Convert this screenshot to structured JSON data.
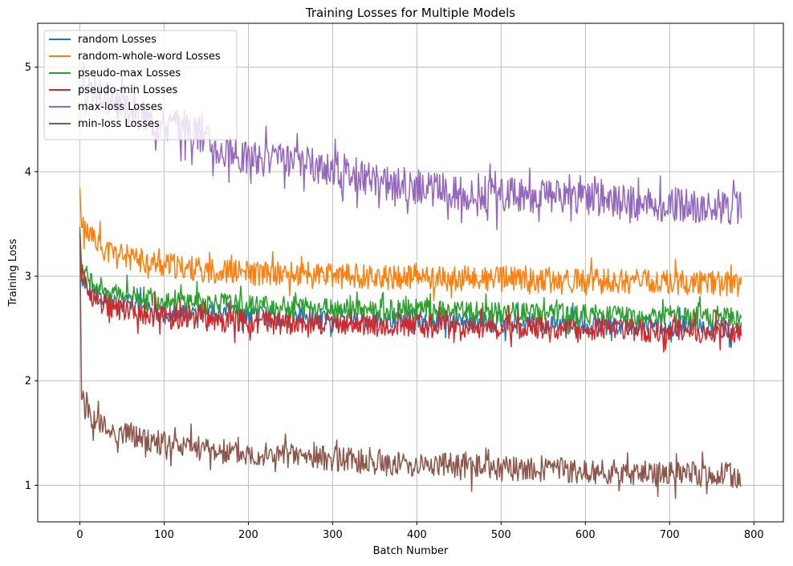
{
  "chart_data": {
    "type": "line",
    "title": "Training Losses for Multiple Models",
    "xlabel": "Batch Number",
    "ylabel": "Training Loss",
    "xlim": [
      -50,
      835
    ],
    "ylim": [
      0.65,
      5.42
    ],
    "x_ticks": [
      0,
      100,
      200,
      300,
      400,
      500,
      600,
      700,
      800
    ],
    "y_ticks": [
      1,
      2,
      3,
      4,
      5
    ],
    "grid": true,
    "legend_position": "upper left",
    "x_points": [
      0,
      2,
      4,
      6,
      8,
      10,
      15,
      20,
      25,
      30,
      40,
      50,
      60,
      70,
      80,
      90,
      100,
      110,
      120,
      130,
      140,
      150,
      160,
      170,
      180,
      190,
      200,
      220,
      240,
      260,
      280,
      300,
      320,
      340,
      360,
      380,
      400,
      420,
      440,
      460,
      480,
      500,
      520,
      540,
      560,
      580,
      600,
      620,
      640,
      660,
      680,
      700,
      720,
      740,
      760,
      785
    ],
    "series": [
      {
        "name": "random Losses",
        "color": "#1f77b4",
        "values": [
          3.44,
          3.05,
          2.98,
          2.95,
          2.9,
          2.88,
          2.85,
          2.82,
          2.8,
          2.8,
          2.75,
          2.72,
          2.72,
          2.7,
          2.68,
          2.68,
          2.68,
          2.65,
          2.65,
          2.64,
          2.64,
          2.64,
          2.65,
          2.63,
          2.63,
          2.62,
          2.62,
          2.62,
          2.61,
          2.6,
          2.6,
          2.59,
          2.6,
          2.59,
          2.58,
          2.58,
          2.58,
          2.57,
          2.57,
          2.57,
          2.56,
          2.56,
          2.55,
          2.55,
          2.55,
          2.55,
          2.54,
          2.54,
          2.54,
          2.53,
          2.53,
          2.52,
          2.52,
          2.51,
          2.51,
          2.5
        ]
      },
      {
        "name": "random-whole-word Losses",
        "color": "#ff7f0e",
        "values": [
          3.84,
          3.5,
          3.45,
          3.42,
          3.4,
          3.38,
          3.35,
          3.32,
          3.3,
          3.25,
          3.22,
          3.2,
          3.18,
          3.15,
          3.15,
          3.12,
          3.1,
          3.1,
          3.08,
          3.08,
          3.07,
          3.06,
          3.05,
          3.05,
          3.04,
          3.04,
          3.03,
          3.02,
          3.02,
          3.01,
          3.01,
          3.0,
          3.0,
          3.0,
          2.99,
          2.99,
          2.99,
          2.98,
          2.98,
          2.98,
          2.97,
          2.97,
          2.97,
          2.96,
          2.96,
          2.96,
          2.95,
          2.95,
          2.95,
          2.95,
          2.94,
          2.94,
          2.94,
          2.94,
          2.93,
          2.92
        ]
      },
      {
        "name": "pseudo-max Losses",
        "color": "#2ca02c",
        "values": [
          3.47,
          3.1,
          3.05,
          3.02,
          3.0,
          2.98,
          2.95,
          2.92,
          2.9,
          2.88,
          2.86,
          2.84,
          2.82,
          2.82,
          2.8,
          2.79,
          2.78,
          2.77,
          2.76,
          2.76,
          2.75,
          2.75,
          2.74,
          2.74,
          2.73,
          2.73,
          2.72,
          2.72,
          2.71,
          2.71,
          2.7,
          2.7,
          2.69,
          2.69,
          2.68,
          2.68,
          2.67,
          2.67,
          2.66,
          2.66,
          2.65,
          2.65,
          2.65,
          2.64,
          2.64,
          2.64,
          2.63,
          2.63,
          2.63,
          2.62,
          2.62,
          2.62,
          2.61,
          2.61,
          2.61,
          2.6
        ]
      },
      {
        "name": "pseudo-min Losses",
        "color": "#d62728",
        "values": [
          3.4,
          3.0,
          2.95,
          2.92,
          2.9,
          2.85,
          2.8,
          2.78,
          2.75,
          2.72,
          2.7,
          2.68,
          2.66,
          2.65,
          2.63,
          2.62,
          2.61,
          2.6,
          2.6,
          2.59,
          2.59,
          2.58,
          2.58,
          2.57,
          2.57,
          2.57,
          2.56,
          2.56,
          2.55,
          2.55,
          2.55,
          2.54,
          2.54,
          2.54,
          2.53,
          2.53,
          2.53,
          2.52,
          2.52,
          2.52,
          2.51,
          2.51,
          2.51,
          2.5,
          2.5,
          2.5,
          2.49,
          2.49,
          2.49,
          2.48,
          2.48,
          2.48,
          2.47,
          2.47,
          2.47,
          2.46
        ]
      },
      {
        "name": "max-loss Losses",
        "color": "#9467bd",
        "values": [
          4.75,
          4.9,
          4.95,
          4.9,
          4.85,
          4.85,
          4.8,
          4.75,
          4.72,
          4.7,
          4.65,
          4.6,
          4.58,
          4.55,
          4.52,
          4.5,
          4.47,
          4.45,
          4.42,
          4.4,
          4.37,
          4.32,
          4.25,
          4.2,
          4.18,
          4.15,
          4.15,
          4.12,
          4.1,
          4.08,
          4.06,
          4.04,
          4.0,
          3.95,
          3.9,
          3.88,
          3.86,
          3.84,
          3.82,
          3.8,
          3.79,
          3.78,
          3.77,
          3.76,
          3.75,
          3.74,
          3.73,
          3.72,
          3.71,
          3.7,
          3.69,
          3.68,
          3.68,
          3.67,
          3.66,
          3.65
        ]
      },
      {
        "name": "min-loss Losses",
        "color": "#8c564b",
        "values": [
          3.42,
          1.9,
          1.8,
          1.75,
          1.72,
          1.7,
          1.65,
          1.62,
          1.6,
          1.55,
          1.52,
          1.5,
          1.48,
          1.46,
          1.44,
          1.42,
          1.4,
          1.38,
          1.37,
          1.36,
          1.35,
          1.34,
          1.33,
          1.32,
          1.31,
          1.3,
          1.3,
          1.29,
          1.28,
          1.27,
          1.26,
          1.25,
          1.24,
          1.23,
          1.22,
          1.21,
          1.2,
          1.19,
          1.19,
          1.18,
          1.17,
          1.17,
          1.16,
          1.15,
          1.15,
          1.14,
          1.14,
          1.13,
          1.13,
          1.12,
          1.12,
          1.11,
          1.11,
          1.1,
          1.1,
          1.09
        ]
      }
    ]
  }
}
